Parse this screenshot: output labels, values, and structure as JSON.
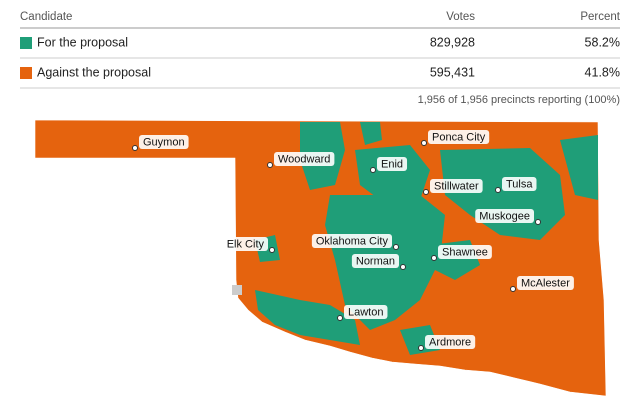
{
  "table": {
    "header": [
      "Candidate",
      "Votes",
      "Percent"
    ],
    "rows": [
      {
        "name": "For the proposal",
        "votes": "829,928",
        "percent": "58.2%",
        "color": "#1f9e78"
      },
      {
        "name": "Against the proposal",
        "votes": "595,431",
        "percent": "41.8%",
        "color": "#e5630e"
      }
    ],
    "footer": "1,956 of 1,956 precincts reporting (100%)"
  },
  "map": {
    "cities": [
      "Guymon",
      "Woodward",
      "Enid",
      "Ponca City",
      "Stillwater",
      "Tulsa",
      "Muskogee",
      "Oklahoma City",
      "Shawnee",
      "Elk City",
      "Norman",
      "McAlester",
      "Lawton",
      "Ardmore"
    ]
  }
}
